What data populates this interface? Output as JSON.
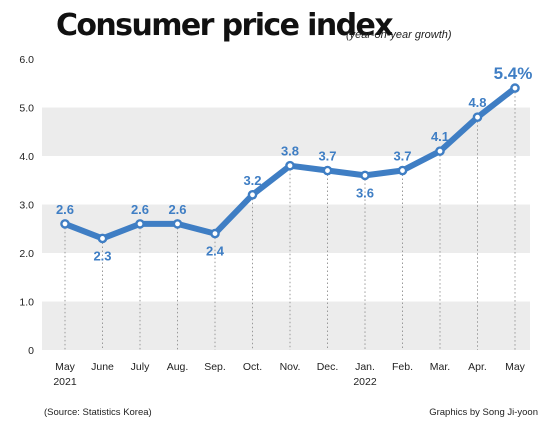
{
  "title": "Consumer price index",
  "subtitle": "(year-on-year growth)",
  "source": "(Source: Statistics Korea)",
  "credit": "Graphics by Song Ji-yoon",
  "colors": {
    "line": "#3f7ec4",
    "label": "#3f7ec4",
    "band": "#ececec",
    "axis_text": "#222222"
  },
  "chart_data": {
    "type": "line",
    "title": "Consumer price index",
    "subtitle": "(year-on-year growth)",
    "categories": [
      "May",
      "June",
      "July",
      "Aug.",
      "Sep.",
      "Oct.",
      "Nov.",
      "Dec.",
      "Jan.",
      "Feb.",
      "Mar.",
      "Apr.",
      "May"
    ],
    "year_labels": [
      "2021",
      "",
      "",
      "",
      "",
      "",
      "",
      "",
      "2022",
      "",
      "",
      "",
      ""
    ],
    "series": [
      {
        "values": [
          2.6,
          2.3,
          2.6,
          2.6,
          2.4,
          3.2,
          3.8,
          3.7,
          3.6,
          3.7,
          4.1,
          4.8,
          5.4
        ],
        "labels": [
          "2.6",
          "2.3",
          "2.6",
          "2.6",
          "2.4",
          "3.2",
          "3.8",
          "3.7",
          "3.6",
          "3.7",
          "4.1",
          "4.8",
          "5.4%"
        ]
      }
    ],
    "yticks": [
      "6.0",
      "5.0",
      "4.0",
      "3.0",
      "2.0",
      "1.0",
      "0"
    ],
    "ylim": [
      0,
      6
    ],
    "grid": "alternating horizontal bands",
    "legend": "none"
  }
}
